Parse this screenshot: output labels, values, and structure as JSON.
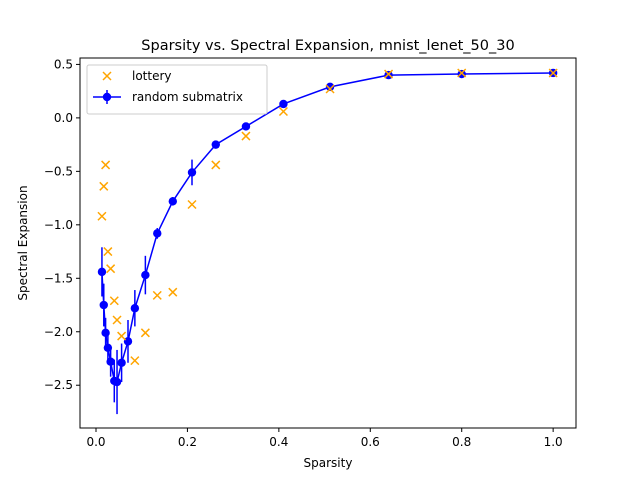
{
  "chart_data": {
    "type": "scatter",
    "title": "Sparsity vs. Spectral Expansion, mnist_lenet_50_30",
    "xlabel": "Sparsity",
    "ylabel": "Spectral Expansion",
    "xlim": [
      -0.035,
      1.05
    ],
    "ylim": [
      -2.9,
      0.56
    ],
    "xticks": [
      0.0,
      0.2,
      0.4,
      0.6,
      0.8,
      1.0
    ],
    "xtick_labels": [
      "0.0",
      "0.2",
      "0.4",
      "0.6",
      "0.8",
      "1.0"
    ],
    "yticks": [
      -2.5,
      -2.0,
      -1.5,
      -1.0,
      -0.5,
      0.0,
      0.5
    ],
    "ytick_labels": [
      "−2.5",
      "−2.0",
      "−1.5",
      "−1.0",
      "−0.5",
      "0.0",
      "0.5"
    ],
    "grid": false,
    "legend_position": "top-left",
    "series": [
      {
        "name": "lottery",
        "style": "x-markers",
        "color": "#FFA500",
        "points": [
          {
            "x": 0.013,
            "y": -0.92
          },
          {
            "x": 0.017,
            "y": -0.64
          },
          {
            "x": 0.021,
            "y": -0.44
          },
          {
            "x": 0.026,
            "y": -1.25
          },
          {
            "x": 0.032,
            "y": -1.41
          },
          {
            "x": 0.04,
            "y": -1.71
          },
          {
            "x": 0.046,
            "y": -1.89
          },
          {
            "x": 0.056,
            "y": -2.04
          },
          {
            "x": 0.085,
            "y": -2.27
          },
          {
            "x": 0.108,
            "y": -2.01
          },
          {
            "x": 0.134,
            "y": -1.66
          },
          {
            "x": 0.168,
            "y": -1.63
          },
          {
            "x": 0.21,
            "y": -0.81
          },
          {
            "x": 0.262,
            "y": -0.44
          },
          {
            "x": 0.328,
            "y": -0.17
          },
          {
            "x": 0.41,
            "y": 0.06
          },
          {
            "x": 0.512,
            "y": 0.27
          },
          {
            "x": 0.64,
            "y": 0.41
          },
          {
            "x": 0.8,
            "y": 0.42
          },
          {
            "x": 1.0,
            "y": 0.42
          }
        ]
      },
      {
        "name": "random submatrix",
        "style": "line-errorbar",
        "color": "#0000FF",
        "points": [
          {
            "x": 0.013,
            "y": -1.44,
            "err": 0.23
          },
          {
            "x": 0.017,
            "y": -1.75,
            "err": 0.2
          },
          {
            "x": 0.021,
            "y": -2.01,
            "err": 0.14
          },
          {
            "x": 0.026,
            "y": -2.15,
            "err": 0.14
          },
          {
            "x": 0.032,
            "y": -2.28,
            "err": 0.14
          },
          {
            "x": 0.04,
            "y": -2.46,
            "err": 0.2
          },
          {
            "x": 0.046,
            "y": -2.47,
            "err": 0.3
          },
          {
            "x": 0.056,
            "y": -2.29,
            "err": 0.18
          },
          {
            "x": 0.07,
            "y": -2.09,
            "err": 0.2
          },
          {
            "x": 0.085,
            "y": -1.78,
            "err": 0.17
          },
          {
            "x": 0.108,
            "y": -1.47,
            "err": 0.18
          },
          {
            "x": 0.134,
            "y": -1.08,
            "err": 0.05
          },
          {
            "x": 0.168,
            "y": -0.78,
            "err": 0.04
          },
          {
            "x": 0.21,
            "y": -0.51,
            "err": 0.12
          },
          {
            "x": 0.262,
            "y": -0.25,
            "err": 0.03
          },
          {
            "x": 0.328,
            "y": -0.08,
            "err": 0.02
          },
          {
            "x": 0.41,
            "y": 0.13,
            "err": 0.02
          },
          {
            "x": 0.512,
            "y": 0.29,
            "err": 0.01
          },
          {
            "x": 0.64,
            "y": 0.4,
            "err": 0.01
          },
          {
            "x": 0.8,
            "y": 0.41,
            "err": 0.01
          },
          {
            "x": 1.0,
            "y": 0.42,
            "err": 0.01
          }
        ]
      }
    ]
  }
}
